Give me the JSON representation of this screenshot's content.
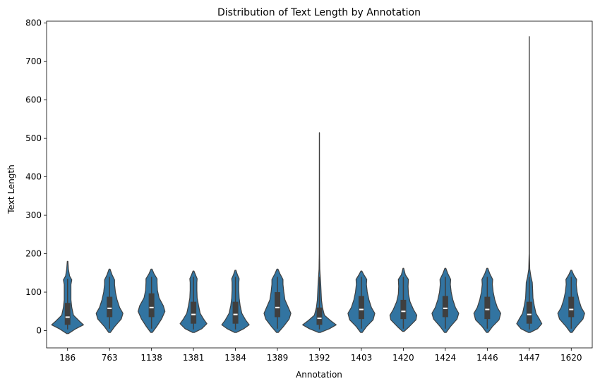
{
  "chart_data": {
    "type": "violin",
    "title": "Distribution of Text Length by Annotation",
    "xlabel": "Annotation",
    "ylabel": "Text Length",
    "ylim": [
      -45,
      805
    ],
    "yticks": [
      0,
      100,
      200,
      300,
      400,
      500,
      600,
      700,
      800
    ],
    "color": "#3274a1",
    "grid": false,
    "categories": [
      "186",
      "763",
      "1138",
      "1381",
      "1384",
      "1389",
      "1392",
      "1403",
      "1420",
      "1424",
      "1446",
      "1447",
      "1620"
    ],
    "violins": [
      {
        "min": -8,
        "max": 180,
        "q1": 15,
        "median": 35,
        "q3": 72,
        "whisker_low": 3,
        "whisker_high": 135,
        "density": [
          [
            -8,
            0.05
          ],
          [
            5,
            0.5
          ],
          [
            15,
            0.95
          ],
          [
            25,
            0.7
          ],
          [
            40,
            0.35
          ],
          [
            60,
            0.25
          ],
          [
            80,
            0.2
          ],
          [
            100,
            0.2
          ],
          [
            120,
            0.2
          ],
          [
            132,
            0.25
          ],
          [
            142,
            0.12
          ],
          [
            160,
            0.05
          ],
          [
            180,
            0.02
          ]
        ]
      },
      {
        "min": -5,
        "max": 160,
        "q1": 35,
        "median": 58,
        "q3": 88,
        "whisker_low": 5,
        "whisker_high": 140,
        "density": [
          [
            -5,
            0.05
          ],
          [
            10,
            0.3
          ],
          [
            30,
            0.7
          ],
          [
            45,
            0.8
          ],
          [
            60,
            0.6
          ],
          [
            80,
            0.45
          ],
          [
            100,
            0.35
          ],
          [
            120,
            0.3
          ],
          [
            132,
            0.3
          ],
          [
            145,
            0.15
          ],
          [
            160,
            0.03
          ]
        ]
      },
      {
        "min": -5,
        "max": 160,
        "q1": 35,
        "median": 60,
        "q3": 97,
        "whisker_low": 5,
        "whisker_high": 140,
        "density": [
          [
            -5,
            0.05
          ],
          [
            10,
            0.3
          ],
          [
            30,
            0.6
          ],
          [
            50,
            0.8
          ],
          [
            65,
            0.7
          ],
          [
            85,
            0.45
          ],
          [
            105,
            0.35
          ],
          [
            125,
            0.33
          ],
          [
            135,
            0.33
          ],
          [
            148,
            0.15
          ],
          [
            160,
            0.03
          ]
        ]
      },
      {
        "min": -5,
        "max": 155,
        "q1": 18,
        "median": 42,
        "q3": 75,
        "whisker_low": 3,
        "whisker_high": 140,
        "density": [
          [
            -5,
            0.05
          ],
          [
            5,
            0.5
          ],
          [
            18,
            0.8
          ],
          [
            30,
            0.6
          ],
          [
            45,
            0.4
          ],
          [
            65,
            0.3
          ],
          [
            85,
            0.22
          ],
          [
            105,
            0.2
          ],
          [
            125,
            0.2
          ],
          [
            135,
            0.22
          ],
          [
            145,
            0.12
          ],
          [
            155,
            0.03
          ]
        ]
      },
      {
        "min": -5,
        "max": 157,
        "q1": 18,
        "median": 42,
        "q3": 75,
        "whisker_low": 3,
        "whisker_high": 140,
        "density": [
          [
            -5,
            0.05
          ],
          [
            5,
            0.5
          ],
          [
            15,
            0.82
          ],
          [
            28,
            0.6
          ],
          [
            45,
            0.38
          ],
          [
            65,
            0.28
          ],
          [
            85,
            0.22
          ],
          [
            105,
            0.2
          ],
          [
            125,
            0.2
          ],
          [
            135,
            0.22
          ],
          [
            145,
            0.12
          ],
          [
            157,
            0.03
          ]
        ]
      },
      {
        "min": -5,
        "max": 160,
        "q1": 35,
        "median": 60,
        "q3": 100,
        "whisker_low": 5,
        "whisker_high": 140,
        "density": [
          [
            -5,
            0.05
          ],
          [
            10,
            0.35
          ],
          [
            30,
            0.7
          ],
          [
            45,
            0.8
          ],
          [
            60,
            0.65
          ],
          [
            80,
            0.45
          ],
          [
            100,
            0.38
          ],
          [
            120,
            0.33
          ],
          [
            133,
            0.33
          ],
          [
            148,
            0.15
          ],
          [
            160,
            0.03
          ]
        ]
      },
      {
        "min": -5,
        "max": 515,
        "q1": 15,
        "median": 32,
        "q3": 60,
        "whisker_low": 3,
        "whisker_high": 140,
        "density": [
          [
            -5,
            0.05
          ],
          [
            5,
            0.6
          ],
          [
            15,
            1.0
          ],
          [
            25,
            0.7
          ],
          [
            40,
            0.3
          ],
          [
            60,
            0.18
          ],
          [
            80,
            0.12
          ],
          [
            100,
            0.1
          ],
          [
            120,
            0.08
          ],
          [
            140,
            0.05
          ],
          [
            160,
            0.02
          ],
          [
            200,
            0.01
          ],
          [
            515,
            0.005
          ]
        ]
      },
      {
        "min": -5,
        "max": 155,
        "q1": 30,
        "median": 55,
        "q3": 90,
        "whisker_low": 5,
        "whisker_high": 140,
        "density": [
          [
            -5,
            0.05
          ],
          [
            10,
            0.3
          ],
          [
            28,
            0.7
          ],
          [
            45,
            0.8
          ],
          [
            60,
            0.6
          ],
          [
            80,
            0.45
          ],
          [
            100,
            0.35
          ],
          [
            120,
            0.3
          ],
          [
            133,
            0.32
          ],
          [
            145,
            0.15
          ],
          [
            155,
            0.03
          ]
        ]
      },
      {
        "min": -2,
        "max": 162,
        "q1": 30,
        "median": 50,
        "q3": 80,
        "whisker_low": 5,
        "whisker_high": 140,
        "density": [
          [
            -2,
            0.05
          ],
          [
            10,
            0.35
          ],
          [
            28,
            0.75
          ],
          [
            40,
            0.8
          ],
          [
            55,
            0.6
          ],
          [
            75,
            0.4
          ],
          [
            95,
            0.3
          ],
          [
            115,
            0.28
          ],
          [
            133,
            0.3
          ],
          [
            145,
            0.12
          ],
          [
            162,
            0.02
          ]
        ]
      },
      {
        "min": -5,
        "max": 162,
        "q1": 35,
        "median": 58,
        "q3": 90,
        "whisker_low": 5,
        "whisker_high": 140,
        "density": [
          [
            -5,
            0.05
          ],
          [
            10,
            0.3
          ],
          [
            30,
            0.7
          ],
          [
            45,
            0.8
          ],
          [
            60,
            0.6
          ],
          [
            80,
            0.45
          ],
          [
            100,
            0.35
          ],
          [
            120,
            0.3
          ],
          [
            133,
            0.32
          ],
          [
            148,
            0.15
          ],
          [
            162,
            0.03
          ]
        ]
      },
      {
        "min": -5,
        "max": 162,
        "q1": 30,
        "median": 55,
        "q3": 88,
        "whisker_low": 5,
        "whisker_high": 140,
        "density": [
          [
            -5,
            0.05
          ],
          [
            10,
            0.3
          ],
          [
            28,
            0.7
          ],
          [
            45,
            0.8
          ],
          [
            60,
            0.6
          ],
          [
            80,
            0.45
          ],
          [
            100,
            0.35
          ],
          [
            120,
            0.3
          ],
          [
            133,
            0.32
          ],
          [
            148,
            0.15
          ],
          [
            162,
            0.03
          ]
        ]
      },
      {
        "min": -5,
        "max": 765,
        "q1": 18,
        "median": 42,
        "q3": 75,
        "whisker_low": 3,
        "whisker_high": 140,
        "density": [
          [
            -5,
            0.05
          ],
          [
            5,
            0.5
          ],
          [
            18,
            0.75
          ],
          [
            30,
            0.6
          ],
          [
            45,
            0.4
          ],
          [
            65,
            0.3
          ],
          [
            85,
            0.22
          ],
          [
            105,
            0.2
          ],
          [
            125,
            0.18
          ],
          [
            140,
            0.1
          ],
          [
            160,
            0.03
          ],
          [
            200,
            0.01
          ],
          [
            765,
            0.005
          ]
        ]
      },
      {
        "min": -5,
        "max": 157,
        "q1": 35,
        "median": 55,
        "q3": 88,
        "whisker_low": 5,
        "whisker_high": 140,
        "density": [
          [
            -5,
            0.05
          ],
          [
            10,
            0.3
          ],
          [
            30,
            0.7
          ],
          [
            45,
            0.8
          ],
          [
            60,
            0.6
          ],
          [
            80,
            0.45
          ],
          [
            100,
            0.35
          ],
          [
            120,
            0.3
          ],
          [
            133,
            0.32
          ],
          [
            145,
            0.15
          ],
          [
            157,
            0.03
          ]
        ]
      }
    ]
  }
}
